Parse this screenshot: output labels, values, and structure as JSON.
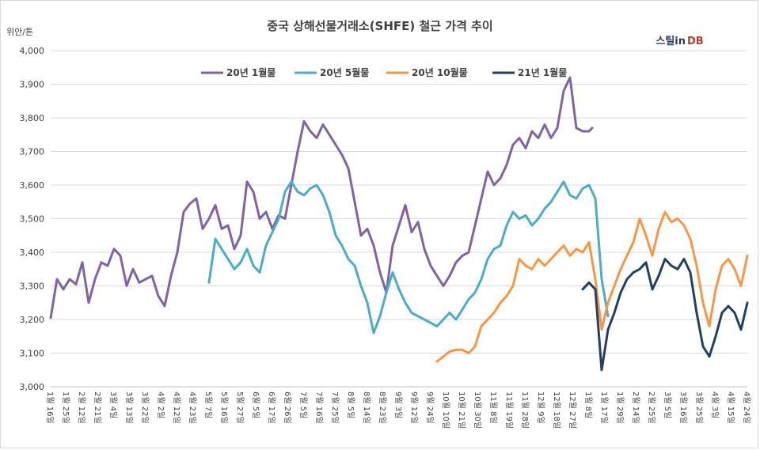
{
  "chart_data": {
    "type": "line",
    "title": "중국 상해선물거래소(SHFE) 철근 가격 추이",
    "ylabel": "위안/톤",
    "ylim": [
      3000,
      4000
    ],
    "yticks": [
      3000,
      3100,
      3200,
      3300,
      3400,
      3500,
      3600,
      3700,
      3800,
      3900,
      4000
    ],
    "ytick_labels": [
      "3,000",
      "3,100",
      "3,200",
      "3,300",
      "3,400",
      "3,500",
      "3,600",
      "3,700",
      "3,800",
      "3,900",
      "4,000"
    ],
    "grid": "horizontal",
    "legend": "top",
    "x_tick_labels": [
      "1월 16일",
      "1월 25일",
      "2월 12일",
      "2월 21일",
      "3월 4일",
      "3월 13일",
      "3월 22일",
      "4월 2일",
      "4월 12일",
      "4월 23일",
      "5월 7일",
      "5월 16일",
      "5월 27일",
      "6월 5일",
      "6월 17일",
      "6월 26일",
      "7월 5일",
      "7월 16일",
      "7월 25일",
      "8월 5일",
      "8월 14일",
      "8월 23일",
      "9월 3일",
      "9월 12일",
      "9월 24일",
      "10월 10일",
      "10월 21일",
      "10월 30일",
      "11월 8일",
      "11월 19일",
      "11월 28일",
      "12월 9일",
      "12월 18일",
      "12월 27일",
      "1월 8일",
      "1월 17일",
      "1월 29일",
      "2월 14일",
      "2월 25일",
      "3월 5일",
      "3월 16일",
      "3월 25일",
      "4월 3일",
      "4월 15일",
      "4월 24일"
    ],
    "x_range": [
      0,
      44
    ],
    "series": [
      {
        "name": "20년 1월물",
        "color": "#8064a2",
        "x": [
          0,
          0.4,
          0.8,
          1.2,
          1.6,
          2,
          2.4,
          2.8,
          3.2,
          3.6,
          4,
          4.4,
          4.8,
          5.2,
          5.6,
          6,
          6.4,
          6.8,
          7.2,
          7.6,
          8,
          8.4,
          8.8,
          9.2,
          9.6,
          10,
          10.4,
          10.8,
          11.2,
          11.6,
          12,
          12.4,
          12.8,
          13.2,
          13.6,
          14,
          14.4,
          14.8,
          15.2,
          15.6,
          16,
          16.4,
          16.8,
          17.2,
          17.6,
          18,
          18.4,
          18.8,
          19.2,
          19.6,
          20,
          20.4,
          20.8,
          21.2,
          21.6,
          22,
          22.4,
          22.8,
          23.2,
          23.6,
          24,
          24.4,
          24.8,
          25.2,
          25.6,
          26,
          26.4,
          26.8,
          27.2,
          27.6,
          28,
          28.4,
          28.8,
          29.2,
          29.6,
          30,
          30.4,
          30.8,
          31.2,
          31.6,
          32,
          32.4,
          32.8,
          33.2,
          33.6,
          34,
          34.2
        ],
        "values": [
          3205,
          3320,
          3290,
          3320,
          3305,
          3370,
          3250,
          3320,
          3370,
          3360,
          3410,
          3390,
          3300,
          3350,
          3310,
          3320,
          3330,
          3270,
          3240,
          3330,
          3400,
          3520,
          3545,
          3560,
          3470,
          3500,
          3540,
          3470,
          3480,
          3410,
          3450,
          3610,
          3580,
          3500,
          3520,
          3470,
          3510,
          3500,
          3600,
          3700,
          3790,
          3760,
          3740,
          3780,
          3750,
          3720,
          3690,
          3650,
          3550,
          3450,
          3470,
          3420,
          3340,
          3280,
          3420,
          3480,
          3540,
          3460,
          3490,
          3410,
          3360,
          3330,
          3300,
          3330,
          3370,
          3390,
          3400,
          3480,
          3560,
          3640,
          3600,
          3620,
          3660,
          3720,
          3740,
          3710,
          3760,
          3740,
          3780,
          3740,
          3770,
          3880,
          3920,
          3770,
          3760,
          3760,
          3770
        ]
      },
      {
        "name": "20년 5월물",
        "color": "#4bacc6",
        "x": [
          10,
          10.4,
          10.8,
          11.2,
          11.6,
          12,
          12.4,
          12.8,
          13.2,
          13.6,
          14,
          14.4,
          14.8,
          15.2,
          15.6,
          16,
          16.4,
          16.8,
          17.2,
          17.6,
          18,
          18.4,
          18.8,
          19.2,
          19.6,
          20,
          20.4,
          20.8,
          21.2,
          21.6,
          22,
          22.4,
          22.8,
          23.2,
          23.6,
          24,
          24.4,
          24.8,
          25.2,
          25.6,
          26,
          26.4,
          26.8,
          27.2,
          27.6,
          28,
          28.4,
          28.8,
          29.2,
          29.6,
          30,
          30.4,
          30.8,
          31.2,
          31.6,
          32,
          32.4,
          32.8,
          33.2,
          33.6,
          34,
          34.4,
          34.8,
          35.2
        ],
        "values": [
          3310,
          3440,
          3410,
          3380,
          3350,
          3370,
          3410,
          3360,
          3340,
          3420,
          3460,
          3500,
          3580,
          3610,
          3580,
          3570,
          3590,
          3600,
          3570,
          3520,
          3450,
          3420,
          3380,
          3360,
          3300,
          3250,
          3160,
          3210,
          3280,
          3340,
          3290,
          3250,
          3220,
          3210,
          3200,
          3190,
          3180,
          3200,
          3220,
          3200,
          3230,
          3260,
          3280,
          3320,
          3380,
          3410,
          3420,
          3480,
          3520,
          3500,
          3510,
          3480,
          3500,
          3530,
          3550,
          3580,
          3610,
          3570,
          3560,
          3590,
          3600,
          3560,
          3320,
          3210
        ]
      },
      {
        "name": "20년 10월물",
        "color": "#f79646",
        "x": [
          24.4,
          24.8,
          25.2,
          25.6,
          26,
          26.4,
          26.8,
          27.2,
          27.6,
          28,
          28.4,
          28.8,
          29.2,
          29.6,
          30,
          30.4,
          30.8,
          31.2,
          31.6,
          32,
          32.4,
          32.8,
          33.2,
          33.6,
          34,
          34.4,
          34.8,
          35.2,
          35.6,
          36,
          36.4,
          36.8,
          37.2,
          37.6,
          38,
          38.4,
          38.8,
          39.2,
          39.6,
          40,
          40.4,
          40.8,
          41.2,
          41.6,
          42,
          42.4,
          42.8,
          43.2,
          43.6,
          44
        ],
        "values": [
          3075,
          3090,
          3105,
          3110,
          3110,
          3100,
          3120,
          3180,
          3200,
          3220,
          3250,
          3270,
          3300,
          3380,
          3360,
          3350,
          3380,
          3360,
          3380,
          3400,
          3420,
          3390,
          3410,
          3400,
          3430,
          3320,
          3170,
          3250,
          3300,
          3350,
          3390,
          3430,
          3500,
          3450,
          3390,
          3470,
          3520,
          3490,
          3500,
          3480,
          3440,
          3360,
          3250,
          3180,
          3290,
          3360,
          3380,
          3350,
          3300,
          3390
        ]
      },
      {
        "name": "21년 1월물",
        "color": "#243f60",
        "x": [
          33.6,
          34,
          34.4,
          34.8,
          35.2,
          35.6,
          36,
          36.4,
          36.8,
          37.2,
          37.6,
          38,
          38.4,
          38.8,
          39.2,
          39.6,
          40,
          40.4,
          40.8,
          41.2,
          41.6,
          42,
          42.4,
          42.8,
          43.2,
          43.6,
          44
        ],
        "values": [
          3290,
          3310,
          3290,
          3050,
          3170,
          3220,
          3280,
          3320,
          3340,
          3350,
          3370,
          3290,
          3330,
          3380,
          3360,
          3350,
          3380,
          3340,
          3220,
          3120,
          3090,
          3150,
          3220,
          3240,
          3220,
          3170,
          3250
        ]
      }
    ]
  },
  "brand": {
    "part1": "스틸in",
    "part2": "DB"
  }
}
